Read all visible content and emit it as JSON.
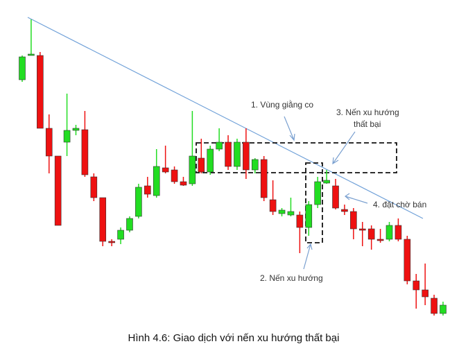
{
  "chart_data": {
    "type": "candlestick",
    "title": "Hình 4.6: Giao dịch với nến xu hướng thất bại",
    "annotations": [
      "1. Vùng giằng co",
      "3. Nến xu hướng",
      "thất bại",
      "4. đặt chờ bán",
      "2. Nến xu hướng"
    ],
    "categories": [
      null,
      null,
      null,
      null,
      null,
      null,
      null,
      null,
      null,
      null,
      null,
      null,
      null,
      null,
      null,
      null,
      null,
      null,
      null,
      null,
      null,
      null,
      null,
      null,
      null,
      null,
      null,
      null,
      null,
      null,
      null,
      null,
      null,
      null,
      null,
      null,
      null,
      null,
      null,
      null,
      null,
      null,
      null,
      null,
      null,
      null,
      null,
      null
    ],
    "open": [
      394,
      429,
      429,
      324,
      284,
      304,
      321,
      322,
      254,
      224,
      161,
      164,
      177,
      197,
      241,
      227,
      267,
      264,
      247,
      244,
      281,
      261,
      294,
      304,
      269,
      304,
      264,
      279,
      221,
      201,
      199,
      199,
      181,
      214,
      245,
      241,
      207,
      204,
      179,
      179,
      164,
      164,
      184,
      164,
      104,
      91,
      79,
      57
    ],
    "high": [
      429,
      481,
      434,
      344,
      284,
      374,
      329,
      349,
      259,
      224,
      164,
      181,
      197,
      244,
      254,
      294,
      299,
      269,
      254,
      349,
      309,
      299,
      324,
      314,
      309,
      324,
      281,
      284,
      249,
      209,
      224,
      204,
      219,
      254,
      264,
      251,
      214,
      209,
      189,
      184,
      179,
      189,
      194,
      169,
      114,
      129,
      84,
      74
    ],
    "low": [
      391,
      429,
      324,
      259,
      184,
      284,
      314,
      254,
      219,
      154,
      154,
      157,
      174,
      194,
      224,
      224,
      259,
      244,
      241,
      241,
      259,
      257,
      291,
      264,
      264,
      251,
      259,
      219,
      199,
      197,
      197,
      144,
      169,
      209,
      244,
      207,
      199,
      164,
      154,
      149,
      159,
      161,
      161,
      99,
      64,
      69,
      54,
      54
    ],
    "close": [
      427,
      431,
      324,
      284,
      184,
      321,
      324,
      257,
      224,
      161,
      159,
      177,
      194,
      239,
      229,
      269,
      261,
      247,
      242,
      284,
      261,
      294,
      304,
      269,
      304,
      264,
      279,
      224,
      204,
      206,
      204,
      181,
      214,
      247,
      249,
      209,
      204,
      179,
      177,
      164,
      162,
      184,
      164,
      104,
      91,
      81,
      57,
      69
    ],
    "up_color": "#22dd22",
    "down_color": "#ee1111",
    "ylim": [
      0,
      509
    ]
  }
}
